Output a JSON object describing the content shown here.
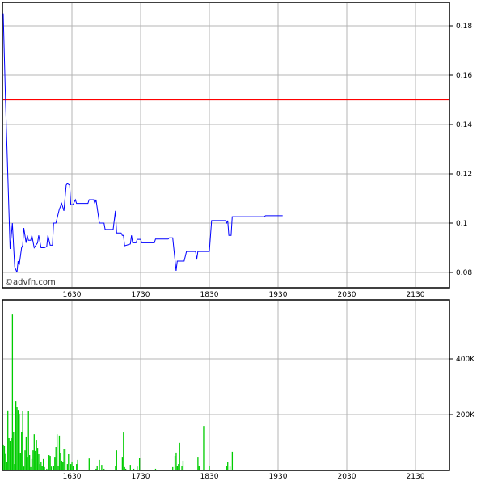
{
  "chart_data": [
    {
      "type": "line",
      "watermark": "©advfn.com",
      "x_ticks": [
        "1630",
        "1730",
        "1830",
        "1930",
        "2030",
        "2130"
      ],
      "y_ticks": [
        "0.18",
        "0.16",
        "0.14",
        "0.12",
        "0.1",
        "0.08"
      ],
      "ylim": [
        0.075,
        0.19
      ],
      "grid": true,
      "reference_line": {
        "value": 0.15,
        "color": "#ff0000"
      },
      "series_color": "#0000ff",
      "points": [
        [
          "15:30",
          0.185
        ],
        [
          "15:32",
          0.15
        ],
        [
          "15:36",
          0.0895
        ],
        [
          "15:38",
          0.1
        ],
        [
          "15:40",
          0.0823
        ],
        [
          "15:42",
          0.08
        ],
        [
          "15:43",
          0.0846
        ],
        [
          "15:44",
          0.083
        ],
        [
          "15:46",
          0.09
        ],
        [
          "15:47",
          0.091
        ],
        [
          "15:48",
          0.098
        ],
        [
          "15:50",
          0.092
        ],
        [
          "15:51",
          0.095
        ],
        [
          "15:52",
          0.093
        ],
        [
          "15:54",
          0.093
        ],
        [
          "15:55",
          0.095
        ],
        [
          "15:57",
          0.09
        ],
        [
          "16:00",
          0.092
        ],
        [
          "16:01",
          0.095
        ],
        [
          "16:03",
          0.09
        ],
        [
          "16:06",
          0.09
        ],
        [
          "16:08",
          0.0905
        ],
        [
          "16:09",
          0.095
        ],
        [
          "16:11",
          0.091
        ],
        [
          "16:13",
          0.091
        ],
        [
          "16:14",
          0.1
        ],
        [
          "16:16",
          0.1
        ],
        [
          "16:19",
          0.1056
        ],
        [
          "16:21",
          0.108
        ],
        [
          "16:23",
          0.105
        ],
        [
          "16:25",
          0.1154
        ],
        [
          "16:26",
          0.116
        ],
        [
          "16:28",
          0.1154
        ],
        [
          "16:29",
          0.1075
        ],
        [
          "16:31",
          0.1075
        ],
        [
          "16:33",
          0.1095
        ],
        [
          "16:34",
          0.108
        ],
        [
          "16:44",
          0.108
        ],
        [
          "16:45",
          0.1095
        ],
        [
          "16:49",
          0.1095
        ],
        [
          "16:50",
          0.108
        ],
        [
          "16:51",
          0.1095
        ],
        [
          "16:54",
          0.1
        ],
        [
          "16:58",
          0.1
        ],
        [
          "16:59",
          0.0974
        ],
        [
          "17:06",
          0.0974
        ],
        [
          "17:08",
          0.105
        ],
        [
          "17:09",
          0.096
        ],
        [
          "17:13",
          0.096
        ],
        [
          "17:14",
          0.095
        ],
        [
          "17:15",
          0.095
        ],
        [
          "17:16",
          0.0908
        ],
        [
          "17:21",
          0.0915
        ],
        [
          "17:22",
          0.095
        ],
        [
          "17:23",
          0.092
        ],
        [
          "17:26",
          0.092
        ],
        [
          "17:27",
          0.0934
        ],
        [
          "17:30",
          0.0934
        ],
        [
          "17:31",
          0.092
        ],
        [
          "17:42",
          0.092
        ],
        [
          "17:43",
          0.0935
        ],
        [
          "17:54",
          0.0935
        ],
        [
          "17:55",
          0.094
        ],
        [
          "17:58",
          0.094
        ],
        [
          "18:01",
          0.0807
        ],
        [
          "18:02",
          0.0846
        ],
        [
          "18:08",
          0.0846
        ],
        [
          "18:10",
          0.0885
        ],
        [
          "18:18",
          0.0885
        ],
        [
          "18:19",
          0.0852
        ],
        [
          "18:20",
          0.0885
        ],
        [
          "18:30",
          0.0885
        ],
        [
          "18:32",
          0.101
        ],
        [
          "18:44",
          0.101
        ],
        [
          "18:45",
          0.1
        ],
        [
          "18:46",
          0.101
        ],
        [
          "18:47",
          0.095
        ],
        [
          "18:49",
          0.095
        ],
        [
          "18:50",
          0.1026
        ],
        [
          "19:18",
          0.1026
        ],
        [
          "19:19",
          0.103
        ],
        [
          "19:34",
          0.103
        ]
      ]
    },
    {
      "type": "bar",
      "x_ticks": [
        "1630",
        "1730",
        "1830",
        "1930",
        "2030",
        "2130"
      ],
      "y_ticks": [
        "400K",
        "200K"
      ],
      "grid": true,
      "series_color": "#00cc00",
      "bars": [
        [
          "15:30",
          93000
        ],
        [
          "15:31",
          87000
        ],
        [
          "15:32",
          59000
        ],
        [
          "15:33",
          30000
        ],
        [
          "15:34",
          215000
        ],
        [
          "15:35",
          116000
        ],
        [
          "15:36",
          107000
        ],
        [
          "15:37",
          116000
        ],
        [
          "15:38",
          559000
        ],
        [
          "15:39",
          139000
        ],
        [
          "15:40",
          23000
        ],
        [
          "15:41",
          249000
        ],
        [
          "15:42",
          226000
        ],
        [
          "15:43",
          217000
        ],
        [
          "15:44",
          203000
        ],
        [
          "15:45",
          61000
        ],
        [
          "15:46",
          139000
        ],
        [
          "15:47",
          212000
        ],
        [
          "15:48",
          14000
        ],
        [
          "15:49",
          72000
        ],
        [
          "15:50",
          119000
        ],
        [
          "15:51",
          49000
        ],
        [
          "15:52",
          212000
        ],
        [
          "15:53",
          55000
        ],
        [
          "15:54",
          12000
        ],
        [
          "15:55",
          41000
        ],
        [
          "15:56",
          72000
        ],
        [
          "15:57",
          130000
        ],
        [
          "15:58",
          70000
        ],
        [
          "15:59",
          110000
        ],
        [
          "16:00",
          81000
        ],
        [
          "16:01",
          58000
        ],
        [
          "16:02",
          23000
        ],
        [
          "16:03",
          32000
        ],
        [
          "16:04",
          17000
        ],
        [
          "16:05",
          41000
        ],
        [
          "16:06",
          12000
        ],
        [
          "16:08",
          6000
        ],
        [
          "16:10",
          55000
        ],
        [
          "16:11",
          52000
        ],
        [
          "16:12",
          14000
        ],
        [
          "16:14",
          17000
        ],
        [
          "16:15",
          49000
        ],
        [
          "16:16",
          84000
        ],
        [
          "16:17",
          130000
        ],
        [
          "16:18",
          17000
        ],
        [
          "16:19",
          125000
        ],
        [
          "16:20",
          61000
        ],
        [
          "16:21",
          35000
        ],
        [
          "16:22",
          32000
        ],
        [
          "16:23",
          78000
        ],
        [
          "16:24",
          78000
        ],
        [
          "16:26",
          23000
        ],
        [
          "16:27",
          58000
        ],
        [
          "16:29",
          23000
        ],
        [
          "16:30",
          32000
        ],
        [
          "16:31",
          17000
        ],
        [
          "16:34",
          23000
        ],
        [
          "16:35",
          38000
        ],
        [
          "16:45",
          43000
        ],
        [
          "16:51",
          6000
        ],
        [
          "16:52",
          17000
        ],
        [
          "16:54",
          38000
        ],
        [
          "16:56",
          20000
        ],
        [
          "16:58",
          6000
        ],
        [
          "17:00",
          3000
        ],
        [
          "17:08",
          17000
        ],
        [
          "17:09",
          72000
        ],
        [
          "17:14",
          49000
        ],
        [
          "17:15",
          136000
        ],
        [
          "17:16",
          12000
        ],
        [
          "17:17",
          6000
        ],
        [
          "17:21",
          20000
        ],
        [
          "17:24",
          6000
        ],
        [
          "17:27",
          14000
        ],
        [
          "17:29",
          46000
        ],
        [
          "17:43",
          6000
        ],
        [
          "17:58",
          12000
        ],
        [
          "18:00",
          52000
        ],
        [
          "18:01",
          64000
        ],
        [
          "18:02",
          17000
        ],
        [
          "18:03",
          23000
        ],
        [
          "18:04",
          99000
        ],
        [
          "18:06",
          17000
        ],
        [
          "18:07",
          35000
        ],
        [
          "18:20",
          49000
        ],
        [
          "18:21",
          17000
        ],
        [
          "18:25",
          159000
        ],
        [
          "18:30",
          17000
        ],
        [
          "18:45",
          17000
        ],
        [
          "18:46",
          29000
        ],
        [
          "18:48",
          14000
        ],
        [
          "18:50",
          67000
        ]
      ]
    }
  ]
}
